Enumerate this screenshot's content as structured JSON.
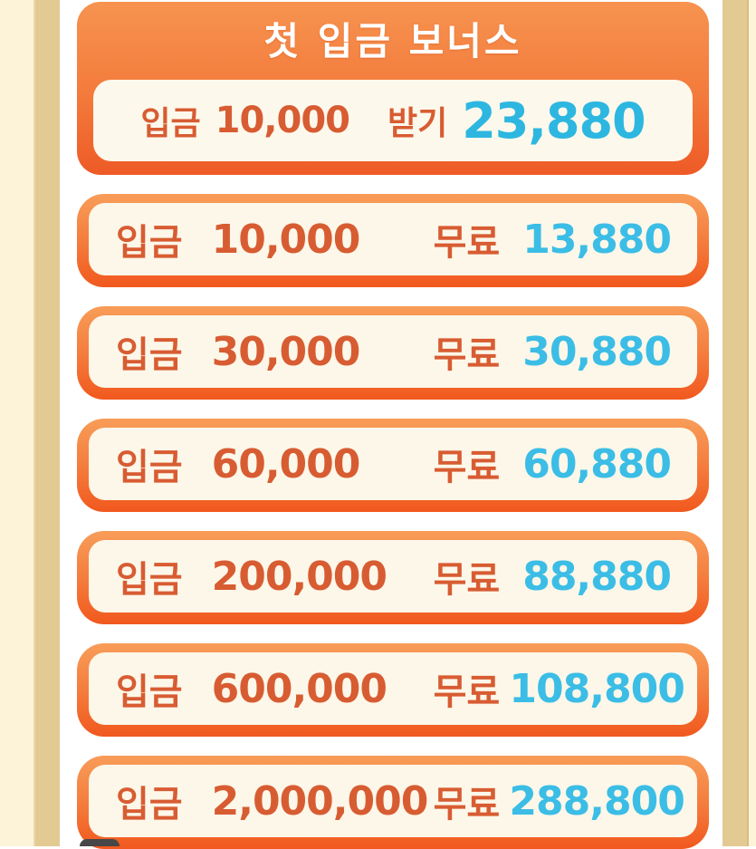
{
  "colors": {
    "page_cream": "#fcf3d9",
    "side_tan": "#e3ca92",
    "content_background": "#ffffff",
    "card_border_top": "#f89d59",
    "card_border_bottom": "#f1581e",
    "header_gradient_top": "#f79350",
    "header_gradient_bottom": "#ee5a26",
    "card_inner_fill": "#fcf7e9",
    "deposit_text_orange": "#d85c32",
    "bonus_text_cyan": "#3bbde6",
    "header_bonus_cyan": "#2db7e0",
    "title_text": "#ffffff"
  },
  "header_card": {
    "title": "첫 입금 보너스",
    "deposit_label": "입금",
    "deposit_amount": "10,000",
    "claim_label": "받기",
    "bonus_amount": "23,880"
  },
  "bonus_tiers": [
    {
      "deposit_label": "입금",
      "deposit_amount": "10,000",
      "free_label": "무료",
      "bonus_amount": "13,880"
    },
    {
      "deposit_label": "입금",
      "deposit_amount": "30,000",
      "free_label": "무료",
      "bonus_amount": "30,880"
    },
    {
      "deposit_label": "입금",
      "deposit_amount": "60,000",
      "free_label": "무료",
      "bonus_amount": "60,880"
    },
    {
      "deposit_label": "입금",
      "deposit_amount": "200,000",
      "free_label": "무료",
      "bonus_amount": "88,880"
    },
    {
      "deposit_label": "입금",
      "deposit_amount": "600,000",
      "free_label": "무료",
      "bonus_amount": "108,800"
    },
    {
      "deposit_label": "입금",
      "deposit_amount": "2,000,000",
      "free_label": "무료",
      "bonus_amount": "288,800"
    }
  ]
}
